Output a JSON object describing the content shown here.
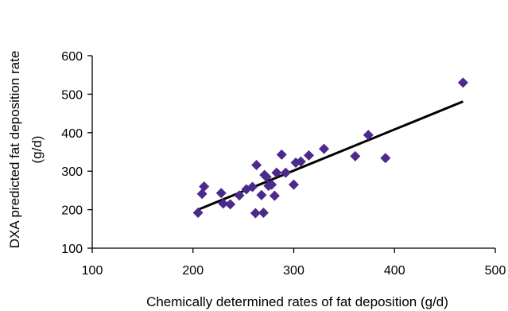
{
  "chart_data": {
    "type": "scatter",
    "title": "",
    "xlabel": "Chemically determined rates of fat deposition (g/d)",
    "ylabel_lines": [
      "DXA predicted fat deposition rate",
      "(g/d)"
    ],
    "xlim": [
      100,
      500
    ],
    "ylim": [
      100,
      600
    ],
    "xticks": [
      100,
      200,
      300,
      400,
      500
    ],
    "yticks": [
      100,
      200,
      300,
      400,
      500,
      600
    ],
    "grid": false,
    "legend": "none",
    "marker": "diamond",
    "marker_color": "#4B2A8C",
    "trendline": {
      "x": [
        205,
        468
      ],
      "y": [
        200,
        481
      ],
      "color": "#000000"
    },
    "points": [
      {
        "x": 205,
        "y": 192
      },
      {
        "x": 209,
        "y": 241
      },
      {
        "x": 211,
        "y": 260
      },
      {
        "x": 228,
        "y": 243
      },
      {
        "x": 230,
        "y": 216
      },
      {
        "x": 237,
        "y": 214
      },
      {
        "x": 246,
        "y": 237
      },
      {
        "x": 253,
        "y": 253
      },
      {
        "x": 259,
        "y": 259
      },
      {
        "x": 262,
        "y": 191
      },
      {
        "x": 263,
        "y": 316
      },
      {
        "x": 268,
        "y": 238
      },
      {
        "x": 270,
        "y": 192
      },
      {
        "x": 271,
        "y": 290
      },
      {
        "x": 273,
        "y": 285
      },
      {
        "x": 275,
        "y": 262
      },
      {
        "x": 278,
        "y": 265
      },
      {
        "x": 281,
        "y": 236
      },
      {
        "x": 283,
        "y": 296
      },
      {
        "x": 288,
        "y": 343
      },
      {
        "x": 292,
        "y": 296
      },
      {
        "x": 300,
        "y": 265
      },
      {
        "x": 302,
        "y": 322
      },
      {
        "x": 307,
        "y": 325
      },
      {
        "x": 315,
        "y": 341
      },
      {
        "x": 330,
        "y": 358
      },
      {
        "x": 361,
        "y": 339
      },
      {
        "x": 374,
        "y": 394
      },
      {
        "x": 391,
        "y": 334
      },
      {
        "x": 468,
        "y": 530
      }
    ]
  }
}
